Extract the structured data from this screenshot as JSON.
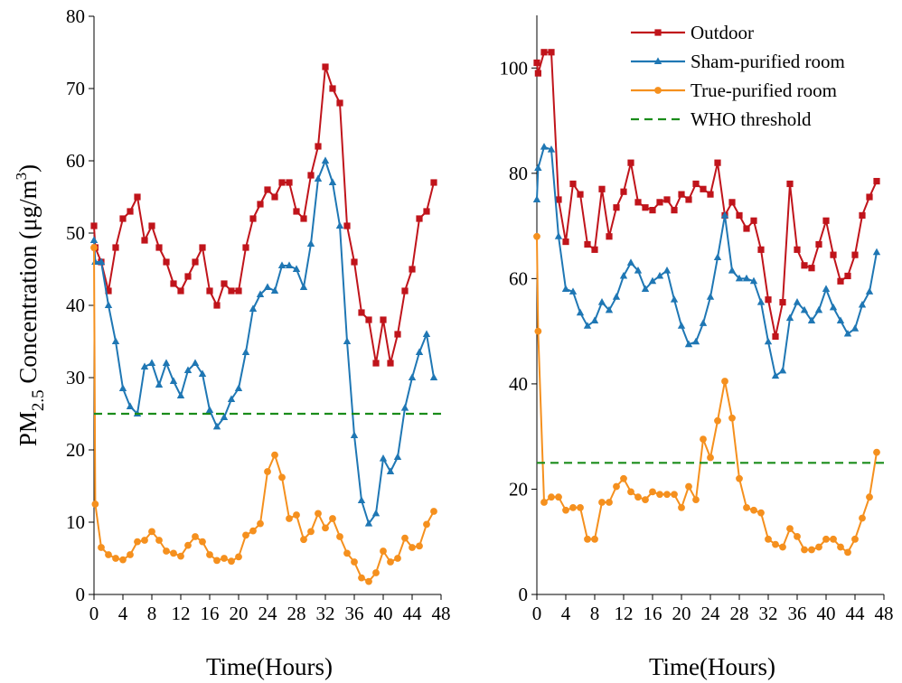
{
  "ylabel": {
    "main": "PM",
    "sub": "2.5",
    "mid": " Concentration (μg/m",
    "sup": "3",
    "end": ")"
  },
  "legend": [
    {
      "label": "Outdoor",
      "color": "#c0141b",
      "marker": "square",
      "dashed": false
    },
    {
      "label": "Sham-purified room",
      "color": "#1f77b4",
      "marker": "triangle",
      "dashed": false
    },
    {
      "label": "True-purified room",
      "color": "#f5901e",
      "marker": "circle",
      "dashed": false
    },
    {
      "label": "WHO threshold",
      "color": "#1a8c1a",
      "marker": "none",
      "dashed": true
    }
  ],
  "chart_data": [
    {
      "type": "line",
      "xlabel": "Time(Hours)",
      "ylabel": "PM2.5 Concentration (μg/m3)",
      "xlim": [
        0,
        48
      ],
      "ylim": [
        0,
        80
      ],
      "xticks": [
        0,
        4,
        8,
        12,
        16,
        20,
        24,
        28,
        32,
        36,
        40,
        44,
        48
      ],
      "yticks": [
        0,
        10,
        20,
        30,
        40,
        50,
        60,
        70,
        80
      ],
      "x": [
        0,
        0.17,
        1,
        2,
        3,
        4,
        5,
        6,
        7,
        8,
        9,
        10,
        11,
        12,
        13,
        14,
        15,
        16,
        17,
        18,
        19,
        20,
        21,
        22,
        23,
        24,
        25,
        26,
        27,
        28,
        29,
        30,
        31,
        32,
        33,
        34,
        35,
        36,
        37,
        38,
        39,
        40,
        41,
        42,
        43,
        44,
        45,
        46,
        47
      ],
      "series": [
        {
          "name": "Outdoor",
          "color": "#c0141b",
          "marker": "square",
          "values": [
            51,
            48,
            46,
            42,
            48,
            52,
            53,
            55,
            49,
            51,
            48,
            46,
            43,
            42,
            44,
            46,
            48,
            42,
            40,
            43,
            42,
            42,
            48,
            52,
            54,
            56,
            55,
            57,
            57,
            53,
            52,
            58,
            62,
            73,
            70,
            68,
            51,
            46,
            39,
            38,
            32,
            38,
            32,
            36,
            42,
            45,
            52,
            53,
            57
          ]
        },
        {
          "name": "Sham-purified room",
          "color": "#1f77b4",
          "marker": "triangle",
          "values": [
            49,
            46,
            46,
            40,
            35,
            28.5,
            26,
            25,
            31.5,
            32,
            29,
            32,
            29.5,
            27.5,
            31,
            32,
            30.5,
            25.5,
            23.2,
            24.5,
            27,
            28.5,
            33.5,
            39.5,
            41.5,
            42.5,
            42,
            45.5,
            45.5,
            45,
            42.5,
            48.5,
            57.5,
            60,
            57,
            51,
            35,
            22,
            13,
            9.8,
            11.2,
            18.8,
            17,
            19,
            25.8,
            30,
            33.5,
            36,
            30
          ]
        },
        {
          "name": "True-purified room",
          "color": "#f5901e",
          "marker": "circle",
          "values": [
            48,
            12.5,
            6.5,
            5.5,
            5,
            4.8,
            5.5,
            7.3,
            7.5,
            8.7,
            7.5,
            6,
            5.7,
            5.3,
            6.8,
            8,
            7.3,
            5.5,
            4.7,
            5,
            4.6,
            5.2,
            8.2,
            8.8,
            9.8,
            17,
            19.3,
            16.2,
            10.5,
            11,
            7.6,
            8.7,
            11.2,
            9.2,
            10.5,
            8,
            5.7,
            4.5,
            2.3,
            1.8,
            3,
            6,
            4.5,
            5,
            7.8,
            6.5,
            6.7,
            9.7,
            11.5
          ]
        },
        {
          "name": "WHO threshold",
          "color": "#1a8c1a",
          "dashed": true,
          "constant": 25
        }
      ]
    },
    {
      "type": "line",
      "xlabel": "Time(Hours)",
      "ylabel": "",
      "xlim": [
        0,
        48
      ],
      "ylim": [
        0,
        110
      ],
      "xticks": [
        0,
        4,
        8,
        12,
        16,
        20,
        24,
        28,
        32,
        36,
        40,
        44,
        48
      ],
      "yticks": [
        0,
        20,
        40,
        60,
        80,
        100
      ],
      "x": [
        0,
        0.17,
        1,
        2,
        3,
        4,
        5,
        6,
        7,
        8,
        9,
        10,
        11,
        12,
        13,
        14,
        15,
        16,
        17,
        18,
        19,
        20,
        21,
        22,
        23,
        24,
        25,
        26,
        27,
        28,
        29,
        30,
        31,
        32,
        33,
        34,
        35,
        36,
        37,
        38,
        39,
        40,
        41,
        42,
        43,
        44,
        45,
        46,
        47
      ],
      "series": [
        {
          "name": "Outdoor",
          "color": "#c0141b",
          "marker": "square",
          "values": [
            101,
            99,
            103,
            103,
            75,
            67,
            78,
            76,
            66.5,
            65.5,
            77,
            68,
            73.5,
            76.5,
            82,
            74.5,
            73.5,
            73,
            74.5,
            75,
            73,
            76,
            75,
            78,
            77,
            76,
            82,
            72,
            74.5,
            72,
            69.5,
            71,
            65.5,
            56,
            49,
            55.5,
            78,
            65.5,
            62.5,
            62,
            66.5,
            71,
            64.5,
            59.5,
            60.5,
            64.5,
            72,
            75.5,
            78.5
          ]
        },
        {
          "name": "Sham-purified room",
          "color": "#1f77b4",
          "marker": "triangle",
          "values": [
            75,
            81,
            85,
            84.5,
            68,
            58,
            57.5,
            53.5,
            51,
            52,
            55.5,
            54,
            56.5,
            60.5,
            63,
            61.5,
            58,
            59.5,
            60.5,
            61.5,
            56,
            51,
            47.5,
            48,
            51.5,
            56.5,
            64,
            72,
            61.5,
            60,
            60,
            59.5,
            55.5,
            48,
            41.5,
            42.5,
            52.5,
            55.5,
            54,
            52,
            54,
            58,
            54.5,
            52,
            49.5,
            50.5,
            55,
            57.5,
            65
          ]
        },
        {
          "name": "True-purified room",
          "color": "#f5901e",
          "marker": "circle",
          "values": [
            68,
            50,
            17.5,
            18.5,
            18.5,
            16,
            16.5,
            16.5,
            10.5,
            10.5,
            17.5,
            17.5,
            20.5,
            22,
            19.5,
            18.5,
            18,
            19.5,
            19,
            19,
            19,
            16.5,
            20.5,
            18,
            29.5,
            26,
            33,
            40.5,
            33.5,
            22,
            16.5,
            16,
            15.5,
            10.5,
            9.5,
            9,
            12.5,
            11,
            8.5,
            8.5,
            9,
            10.5,
            10.5,
            9,
            8,
            10.5,
            14.5,
            18.5,
            27
          ]
        },
        {
          "name": "WHO threshold",
          "color": "#1a8c1a",
          "dashed": true,
          "constant": 25
        }
      ]
    }
  ]
}
